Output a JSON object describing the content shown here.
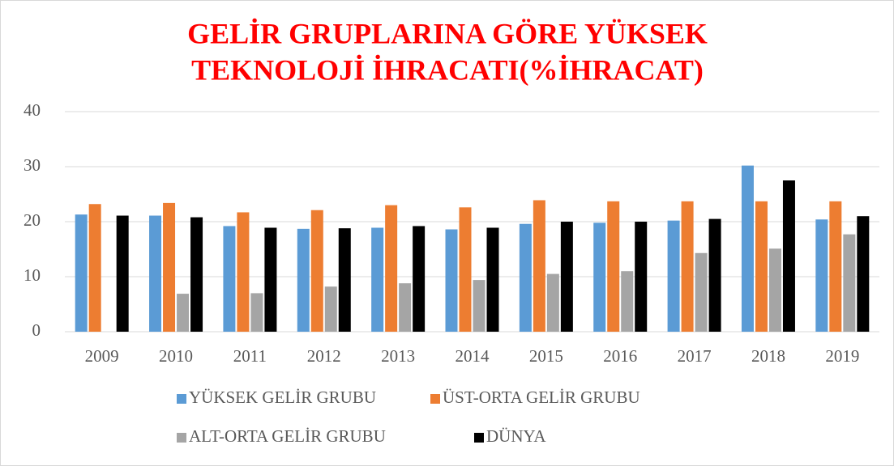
{
  "chart_data": {
    "type": "bar",
    "title": [
      "GELİR GRUPLARINA GÖRE YÜKSEK",
      "TEKNOLOJİ İHRACATI(%İHRACAT)"
    ],
    "categories": [
      "2009",
      "2010",
      "2011",
      "2012",
      "2013",
      "2014",
      "2015",
      "2016",
      "2017",
      "2018",
      "2019"
    ],
    "series": [
      {
        "name": "YÜKSEK GELİR GRUBU",
        "color": "#5b9bd5",
        "values": [
          21.3,
          21.1,
          19.2,
          18.7,
          18.9,
          18.6,
          19.6,
          19.8,
          20.2,
          30.2,
          20.4
        ]
      },
      {
        "name": "ÜST-ORTA GELİR GRUBU",
        "color": "#ed7d31",
        "values": [
          23.2,
          23.4,
          21.7,
          22.1,
          23.0,
          22.6,
          23.9,
          23.7,
          23.7,
          23.7,
          23.7
        ]
      },
      {
        "name": "ALT-ORTA GELİR GRUBU",
        "color": "#a5a5a5",
        "values": [
          null,
          6.9,
          7.0,
          8.2,
          8.8,
          9.4,
          10.5,
          11.0,
          14.3,
          15.1,
          17.7
        ]
      },
      {
        "name": "DÜNYA",
        "color": "#000000",
        "values": [
          21.1,
          20.8,
          18.9,
          18.8,
          19.2,
          18.9,
          20.0,
          20.0,
          20.5,
          27.5,
          21.0
        ]
      }
    ],
    "ylim": [
      0,
      40
    ],
    "yticks": [
      0,
      10,
      20,
      30,
      40
    ],
    "grid": true
  }
}
